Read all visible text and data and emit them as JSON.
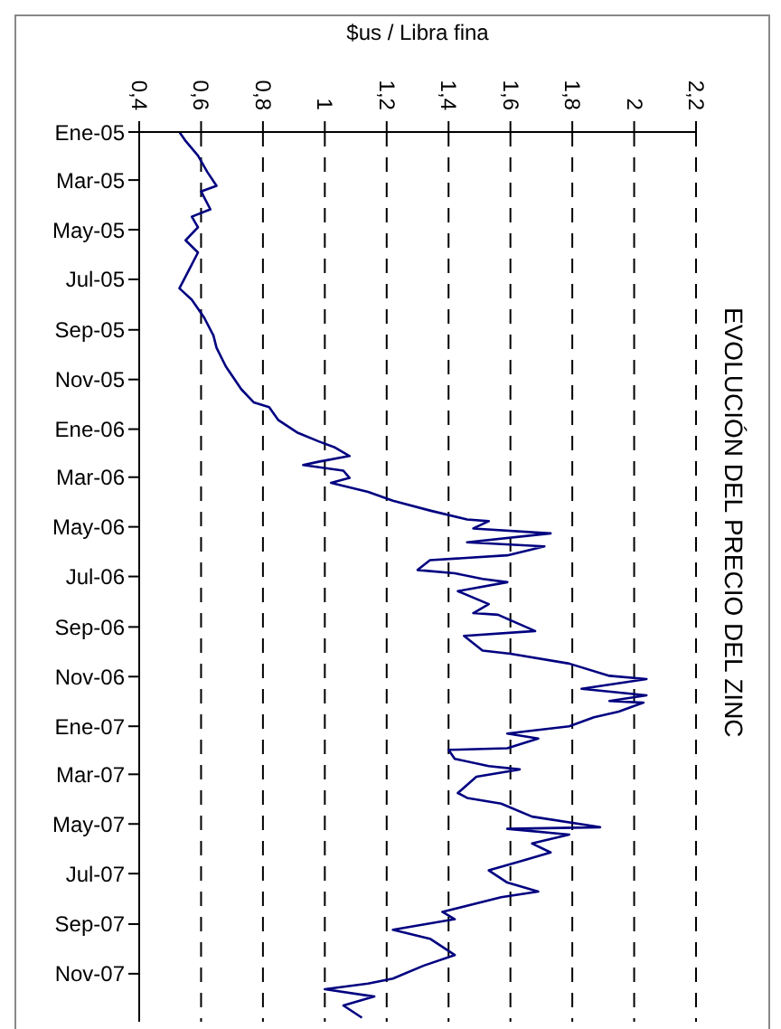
{
  "chart_data": {
    "type": "line",
    "title": "EVOLUCIÓN DEL PRECIO DEL ZINC",
    "xlabel": "$us / Libra fina",
    "orientation": "horizontal",
    "grid": "x",
    "marker": "none",
    "line_style": "solid",
    "xlim": [
      0.4,
      2.2
    ],
    "xticks": [
      {
        "value": 0.4,
        "label": "0,4"
      },
      {
        "value": 0.6,
        "label": "0,6"
      },
      {
        "value": 0.8,
        "label": "0,8"
      },
      1,
      {
        "value": 1.2,
        "label": "1,2"
      },
      {
        "value": 1.4,
        "label": "1,4"
      },
      {
        "value": 1.6,
        "label": "1,6"
      },
      {
        "value": 1.8,
        "label": "1,8"
      },
      2,
      {
        "value": 2.2,
        "label": "2,2"
      }
    ],
    "ylim": [
      "2007-12-30",
      "2005-01-01"
    ],
    "yticks": [
      {
        "value": "2005-01-01",
        "label": "Ene-05"
      },
      {
        "value": "2005-03-01",
        "label": "Mar-05"
      },
      {
        "value": "2005-05-01",
        "label": "May-05"
      },
      {
        "value": "2005-07-01",
        "label": "Jul-05"
      },
      {
        "value": "2005-09-01",
        "label": "Sep-05"
      },
      {
        "value": "2005-11-01",
        "label": "Nov-05"
      },
      {
        "value": "2006-01-01",
        "label": "Ene-06"
      },
      {
        "value": "2006-03-01",
        "label": "Mar-06"
      },
      {
        "value": "2006-05-01",
        "label": "May-06"
      },
      {
        "value": "2006-07-01",
        "label": "Jul-06"
      },
      {
        "value": "2006-09-01",
        "label": "Sep-06"
      },
      {
        "value": "2006-11-01",
        "label": "Nov-06"
      },
      {
        "value": "2007-01-01",
        "label": "Ene-07"
      },
      {
        "value": "2007-03-01",
        "label": "Mar-07"
      },
      {
        "value": "2007-05-01",
        "label": "May-07"
      },
      {
        "value": "2007-07-01",
        "label": "Jul-07"
      },
      {
        "value": "2007-09-01",
        "label": "Sep-07"
      },
      {
        "value": "2007-11-01",
        "label": "Nov-07"
      }
    ],
    "series": [
      {
        "color": "#000080",
        "x": [
          "2005-01-01",
          "2005-01-12",
          "2005-01-30",
          "2005-02-19",
          "2005-03-08",
          "2005-03-15",
          "2005-04-06",
          "2005-04-15",
          "2005-04-28",
          "2005-05-14",
          "2005-05-29",
          "2005-06-20",
          "2005-07-12",
          "2005-07-26",
          "2005-08-17",
          "2005-09-08",
          "2005-09-23",
          "2005-10-16",
          "2005-11-13",
          "2005-11-29",
          "2005-12-05",
          "2005-12-21",
          "2006-01-05",
          "2006-01-16",
          "2006-01-23",
          "2006-02-03",
          "2006-02-10",
          "2006-02-14",
          "2006-02-21",
          "2006-03-02",
          "2006-03-08",
          "2006-03-19",
          "2006-03-30",
          "2006-04-11",
          "2006-04-22",
          "2006-04-24",
          "2006-05-03",
          "2006-05-09",
          "2006-05-20",
          "2006-05-25",
          "2006-06-05",
          "2006-06-11",
          "2006-06-23",
          "2006-06-27",
          "2006-07-04",
          "2006-07-08",
          "2006-07-19",
          "2006-08-04",
          "2006-08-15",
          "2006-08-17",
          "2006-09-06",
          "2006-09-12",
          "2006-09-30",
          "2006-10-04",
          "2006-10-16",
          "2006-10-31",
          "2006-11-04",
          "2006-11-16",
          "2006-11-24",
          "2006-12-01",
          "2006-12-03",
          "2006-12-14",
          "2006-12-21",
          "2007-01-01",
          "2007-01-10",
          "2007-01-16",
          "2007-01-28",
          "2007-01-30",
          "2007-02-10",
          "2007-02-19",
          "2007-02-23",
          "2007-03-04",
          "2007-03-24",
          "2007-03-30",
          "2007-04-06",
          "2007-04-22",
          "2007-05-05",
          "2007-05-07",
          "2007-05-14",
          "2007-05-25",
          "2007-06-05",
          "2007-06-16",
          "2007-06-27",
          "2007-07-12",
          "2007-07-23",
          "2007-07-30",
          "2007-08-17",
          "2007-08-26",
          "2007-09-08",
          "2007-09-19",
          "2007-10-09",
          "2007-10-22",
          "2007-11-07",
          "2007-11-13",
          "2007-11-20",
          "2007-11-29",
          "2007-12-10",
          "2007-12-25"
        ],
        "values": [
          0.53,
          0.55,
          0.59,
          0.62,
          0.65,
          0.6,
          0.63,
          0.57,
          0.59,
          0.55,
          0.59,
          0.56,
          0.53,
          0.57,
          0.61,
          0.64,
          0.65,
          0.68,
          0.73,
          0.77,
          0.82,
          0.85,
          0.91,
          0.98,
          1.03,
          1.08,
          0.98,
          0.93,
          1.06,
          1.08,
          1.02,
          1.14,
          1.22,
          1.34,
          1.46,
          1.53,
          1.48,
          1.73,
          1.46,
          1.71,
          1.59,
          1.34,
          1.3,
          1.42,
          1.51,
          1.59,
          1.43,
          1.53,
          1.48,
          1.56,
          1.68,
          1.45,
          1.51,
          1.6,
          1.79,
          1.92,
          2.04,
          1.83,
          2.04,
          1.92,
          2.03,
          1.95,
          1.87,
          1.79,
          1.59,
          1.69,
          1.59,
          1.4,
          1.42,
          1.53,
          1.63,
          1.49,
          1.43,
          1.46,
          1.57,
          1.67,
          1.89,
          1.59,
          1.79,
          1.67,
          1.73,
          1.63,
          1.53,
          1.59,
          1.69,
          1.57,
          1.38,
          1.42,
          1.22,
          1.34,
          1.42,
          1.32,
          1.22,
          1.14,
          1.0,
          1.16,
          1.06,
          1.12
        ]
      }
    ]
  }
}
